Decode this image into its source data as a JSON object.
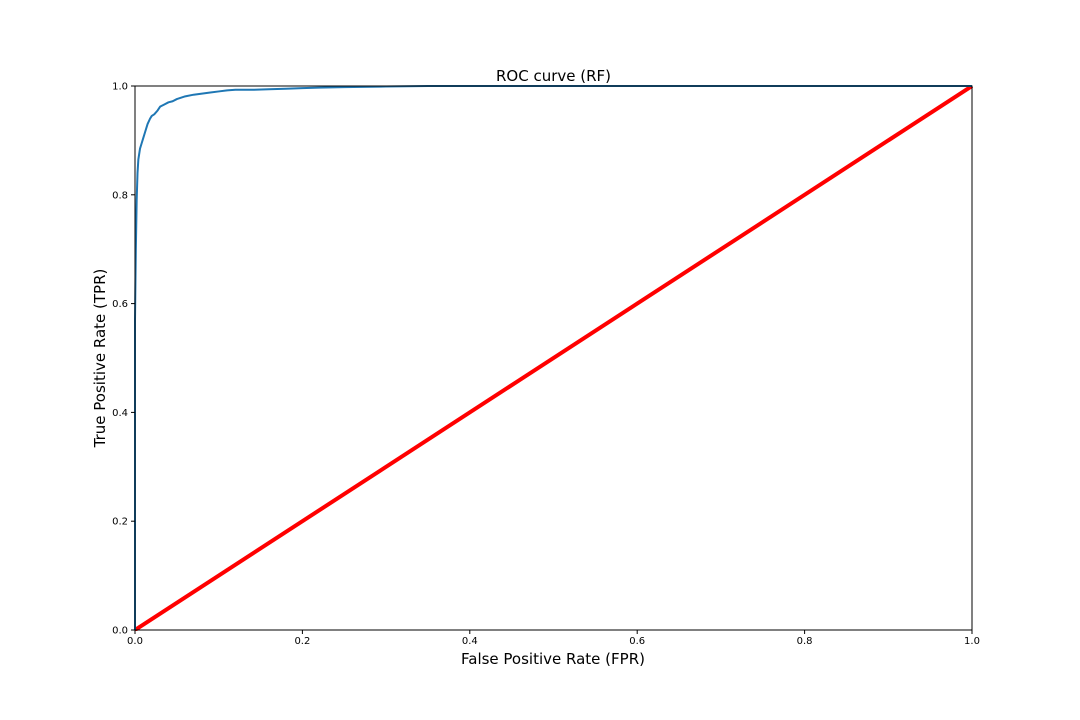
{
  "chart_data": {
    "type": "line",
    "title": "ROC curve (RF)",
    "xlabel": "False Positive Rate (FPR)",
    "ylabel": "True Positive Rate (TPR)",
    "xlim": [
      0.0,
      1.0
    ],
    "ylim": [
      0.0,
      1.0
    ],
    "xticks": [
      0.0,
      0.2,
      0.4,
      0.6,
      0.8,
      1.0
    ],
    "yticks": [
      0.0,
      0.2,
      0.4,
      0.6,
      0.8,
      1.0
    ],
    "xtick_labels": [
      "0.0",
      "0.2",
      "0.4",
      "0.6",
      "0.8",
      "1.0"
    ],
    "ytick_labels": [
      "0.0",
      "0.2",
      "0.4",
      "0.6",
      "0.8",
      "1.0"
    ],
    "grid": false,
    "legend": "none",
    "series": [
      {
        "color": "#1f77b4",
        "x": [
          0.0,
          0.0,
          0.001,
          0.002,
          0.003,
          0.004,
          0.006,
          0.008,
          0.01,
          0.012,
          0.015,
          0.018,
          0.02,
          0.023,
          0.027,
          0.03,
          0.035,
          0.04,
          0.045,
          0.05,
          0.06,
          0.07,
          0.08,
          0.09,
          0.1,
          0.11,
          0.12,
          0.14,
          0.16,
          0.18,
          0.2,
          0.22,
          0.25,
          0.3,
          0.35,
          1.0
        ],
        "y": [
          0.0,
          0.57,
          0.7,
          0.79,
          0.84,
          0.865,
          0.885,
          0.895,
          0.905,
          0.915,
          0.93,
          0.94,
          0.945,
          0.948,
          0.955,
          0.962,
          0.966,
          0.97,
          0.972,
          0.976,
          0.981,
          0.984,
          0.986,
          0.988,
          0.99,
          0.992,
          0.993,
          0.993,
          0.994,
          0.995,
          0.996,
          0.997,
          0.998,
          0.999,
          1.0,
          1.0
        ]
      },
      {
        "color": "#ff0000",
        "x": [
          0.0,
          1.0
        ],
        "y": [
          0.0,
          1.0
        ]
      }
    ]
  }
}
